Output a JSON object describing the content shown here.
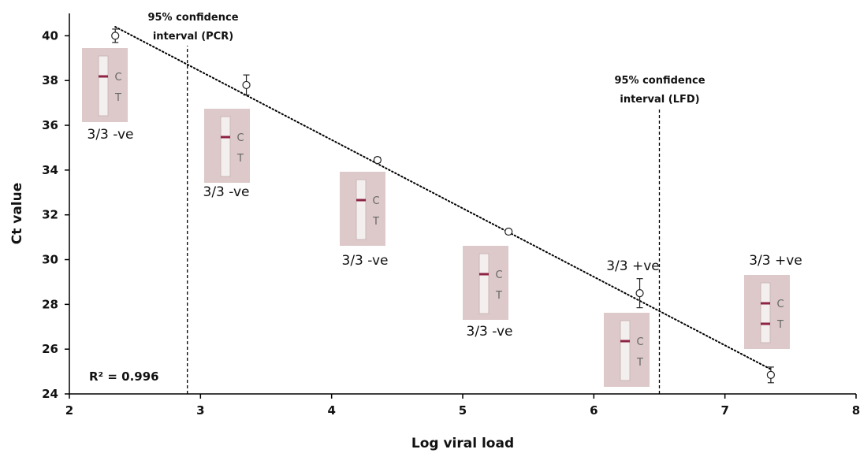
{
  "chart_data": {
    "type": "scatter",
    "xlabel": "Log viral load",
    "ylabel": "Ct value",
    "xlim": [
      2,
      8
    ],
    "ylim": [
      24,
      41
    ],
    "x_ticks": [
      "2",
      "3",
      "4",
      "5",
      "6",
      "7",
      "8"
    ],
    "y_ticks": [
      "24",
      "26",
      "28",
      "30",
      "32",
      "34",
      "36",
      "38",
      "40"
    ],
    "x_tick_values": [
      2,
      3,
      4,
      5,
      6,
      7,
      8
    ],
    "y_tick_values": [
      24,
      26,
      28,
      30,
      32,
      34,
      36,
      38,
      40
    ],
    "grid": false,
    "points": [
      {
        "x": 2.35,
        "y": 40.0,
        "err": 0.3
      },
      {
        "x": 3.35,
        "y": 37.8,
        "err": 0.45
      },
      {
        "x": 4.35,
        "y": 34.45,
        "err": 0.12
      },
      {
        "x": 5.35,
        "y": 31.25,
        "err": 0.1
      },
      {
        "x": 6.35,
        "y": 28.5,
        "err": 0.65
      },
      {
        "x": 7.35,
        "y": 24.85,
        "err": 0.35
      }
    ],
    "trendline": {
      "style": "dotted",
      "x": [
        2.35,
        7.35
      ],
      "y": [
        40.4,
        25.1
      ]
    },
    "r_squared_label": "R² = 0.996",
    "ci_lines": [
      {
        "x": 2.9,
        "label_lines": [
          "95% confidence",
          "interval (PCR)"
        ]
      },
      {
        "x": 6.5,
        "label_lines": [
          "95% confidence",
          "interval (LFD)"
        ]
      }
    ],
    "result_labels": [
      "3/3 -ve",
      "3/3 -ve",
      "3/3 -ve",
      "3/3 -ve",
      "3/3 +ve",
      "3/3 +ve"
    ],
    "strips": [
      {
        "lines": [
          "C"
        ],
        "c": "C",
        "t": "T"
      },
      {
        "lines": [
          "C"
        ],
        "c": "C",
        "t": "T"
      },
      {
        "lines": [
          "C"
        ],
        "c": "C",
        "t": "T"
      },
      {
        "lines": [
          "C"
        ],
        "c": "C",
        "t": "T"
      },
      {
        "lines": [
          "C"
        ],
        "c": "C",
        "t": "T"
      },
      {
        "lines": [
          "C",
          "T"
        ],
        "c": "C",
        "t": "T"
      }
    ],
    "colors": {
      "strip_line": "#8e2344",
      "strip_bg": "#ddc9c9",
      "axis": "#000000"
    }
  }
}
